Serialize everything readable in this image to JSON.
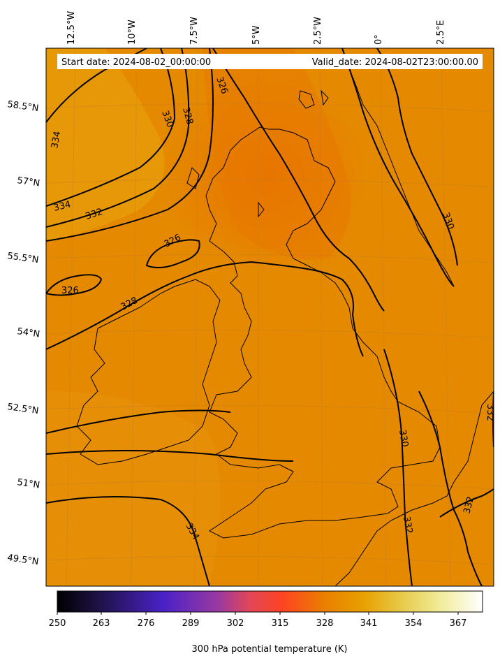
{
  "header": {
    "start_date": "Start date: 2024-08-02_00:00:00",
    "valid_date": "Valid_date: 2024-08-02T23:00:00.00"
  },
  "axes": {
    "lon_labels": [
      "12.5°W",
      "10°W",
      "7.5°W",
      "5°W",
      "2.5°W",
      "0°",
      "2.5°E"
    ],
    "lat_labels": [
      "58.5°N",
      "57°N",
      "55.5°N",
      "54°N",
      "52.5°N",
      "51°N",
      "49.5°N"
    ]
  },
  "contour_labels": [
    "334",
    "330",
    "328",
    "326",
    "334",
    "332",
    "326",
    "326",
    "328",
    "330",
    "330",
    "332",
    "332",
    "334",
    "332"
  ],
  "colorbar": {
    "label": "300 hPa potential temperature (K)",
    "ticks": [
      "250",
      "263",
      "276",
      "289",
      "302",
      "315",
      "328",
      "341",
      "354",
      "367"
    ],
    "colors": [
      "#000000",
      "#1f1248",
      "#4a22c8",
      "#9a3aa0",
      "#e0465a",
      "#ff4422",
      "#e98000",
      "#e8a000",
      "#e6c640",
      "#f0ec9a",
      "#ffffff"
    ]
  },
  "map": {
    "field_colors": {
      "base": "#e58a00",
      "dark": "#e77800",
      "light": "#e69a08"
    },
    "contour_color": "#000000"
  }
}
